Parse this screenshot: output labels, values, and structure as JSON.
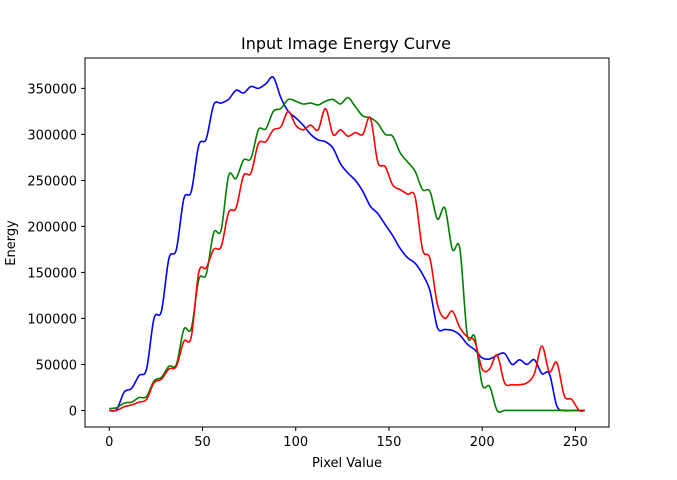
{
  "chart_data": {
    "type": "line",
    "title": "Input Image Energy Curve",
    "xlabel": "Pixel Value",
    "ylabel": "Energy",
    "xlim": [
      -13,
      268
    ],
    "ylim": [
      -18000,
      383000
    ],
    "xticks": [
      0,
      50,
      100,
      150,
      200,
      250
    ],
    "yticks": [
      0,
      50000,
      100000,
      150000,
      200000,
      250000,
      300000,
      350000
    ],
    "grid": false,
    "legend": "none",
    "series": [
      {
        "color": "#0000ff",
        "x": [
          0,
          4,
          8,
          12,
          16,
          20,
          24,
          28,
          32,
          36,
          40,
          44,
          48,
          52,
          56,
          60,
          64,
          68,
          72,
          76,
          80,
          84,
          88,
          92,
          96,
          100,
          104,
          108,
          112,
          116,
          120,
          124,
          128,
          132,
          136,
          140,
          144,
          148,
          152,
          156,
          160,
          164,
          168,
          172,
          176,
          180,
          184,
          188,
          192,
          196,
          200,
          204,
          208,
          212,
          216,
          220,
          224,
          228,
          232,
          236,
          240,
          244,
          248,
          252,
          255
        ],
        "y": [
          0,
          1000,
          20000,
          24000,
          38000,
          45000,
          100000,
          108000,
          165000,
          175000,
          230000,
          238000,
          288000,
          295000,
          332000,
          334000,
          338000,
          348000,
          345000,
          352000,
          350000,
          355000,
          362000,
          340000,
          325000,
          318000,
          310000,
          300000,
          294000,
          292000,
          285000,
          268000,
          258000,
          250000,
          238000,
          222000,
          214000,
          202000,
          190000,
          176000,
          166000,
          160000,
          148000,
          130000,
          90000,
          88000,
          87000,
          82000,
          72000,
          66000,
          57000,
          56000,
          60000,
          62000,
          50000,
          55000,
          50000,
          55000,
          40000,
          40000,
          5000,
          0,
          0,
          0,
          0
        ]
      },
      {
        "color": "#008000",
        "x": [
          0,
          4,
          8,
          12,
          16,
          20,
          24,
          28,
          32,
          36,
          40,
          44,
          48,
          52,
          56,
          60,
          64,
          68,
          72,
          76,
          80,
          84,
          88,
          92,
          96,
          100,
          104,
          108,
          112,
          116,
          120,
          124,
          128,
          132,
          136,
          140,
          144,
          148,
          152,
          156,
          160,
          164,
          168,
          172,
          176,
          180,
          184,
          188,
          192,
          196,
          200,
          204,
          208,
          212,
          216,
          220,
          224,
          228,
          232,
          236,
          240,
          244,
          248,
          252,
          255
        ],
        "y": [
          2000,
          3000,
          8000,
          9000,
          14000,
          15000,
          32000,
          36000,
          48000,
          50000,
          88000,
          89000,
          142000,
          148000,
          193000,
          196000,
          255000,
          252000,
          272000,
          274000,
          305000,
          306000,
          325000,
          328000,
          338000,
          336000,
          333000,
          334000,
          332000,
          336000,
          338000,
          333000,
          340000,
          330000,
          320000,
          318000,
          312000,
          300000,
          298000,
          280000,
          270000,
          260000,
          240000,
          238000,
          208000,
          220000,
          175000,
          176000,
          82000,
          80000,
          28000,
          26000,
          0,
          0,
          0,
          0,
          0,
          0,
          0,
          0,
          0,
          0,
          0,
          0,
          0
        ]
      },
      {
        "color": "#ff0000",
        "x": [
          0,
          4,
          8,
          12,
          16,
          20,
          24,
          28,
          32,
          36,
          40,
          44,
          48,
          52,
          56,
          60,
          64,
          68,
          72,
          76,
          80,
          84,
          88,
          92,
          96,
          100,
          104,
          108,
          112,
          116,
          120,
          124,
          128,
          132,
          136,
          140,
          144,
          148,
          152,
          156,
          160,
          164,
          168,
          172,
          176,
          180,
          184,
          188,
          192,
          196,
          200,
          204,
          208,
          212,
          216,
          220,
          224,
          228,
          232,
          236,
          240,
          244,
          248,
          252,
          255
        ],
        "y": [
          0,
          0,
          4000,
          6000,
          9000,
          12000,
          30000,
          34000,
          45000,
          48000,
          75000,
          80000,
          150000,
          155000,
          175000,
          178000,
          215000,
          220000,
          255000,
          258000,
          290000,
          292000,
          305000,
          308000,
          325000,
          310000,
          305000,
          310000,
          305000,
          328000,
          300000,
          305000,
          298000,
          302000,
          300000,
          318000,
          270000,
          265000,
          245000,
          240000,
          235000,
          232000,
          175000,
          165000,
          115000,
          100000,
          108000,
          90000,
          80000,
          75000,
          45000,
          45000,
          60000,
          30000,
          28000,
          28000,
          30000,
          40000,
          70000,
          42000,
          52000,
          16000,
          12000,
          0,
          0
        ]
      }
    ]
  }
}
